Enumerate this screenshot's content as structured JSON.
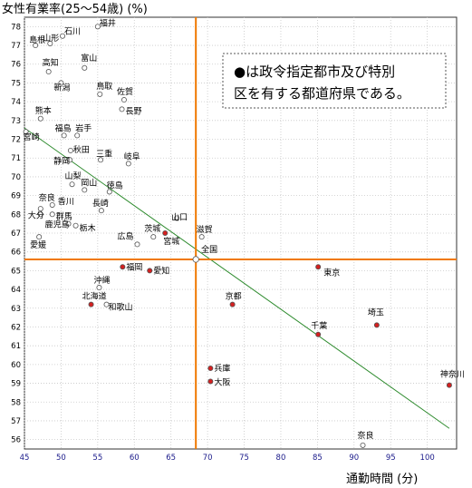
{
  "chart_data": {
    "type": "scatter",
    "title": "女性有業率(25～54歳) (%)",
    "xlabel": "通勤時間 (分)",
    "ylabel": "女性有業率(25～54歳) (%)",
    "xlim": [
      45,
      104
    ],
    "ylim": [
      55.5,
      78.5
    ],
    "x_ticks": [
      45,
      50,
      55,
      60,
      65,
      70,
      75,
      80,
      85,
      90,
      95,
      100
    ],
    "y_ticks": [
      56,
      57,
      58,
      59,
      60,
      61,
      62,
      63,
      64,
      65,
      66,
      67,
      68,
      69,
      70,
      71,
      72,
      73,
      74,
      75,
      76,
      77,
      78
    ],
    "reference_lines": {
      "x": 68.4,
      "y": 65.6,
      "color": "#f07800",
      "label": "全国"
    },
    "trendline": {
      "from": [
        45,
        72.6
      ],
      "to": [
        103,
        56.6
      ],
      "color": "#2e8b2e"
    },
    "marker_colors": {
      "designated": "#d42020",
      "other": "#ffffff",
      "outline": "#555555",
      "national": "#ffffff"
    },
    "legend_note": {
      "marker": "●",
      "lines": [
        "は政令指定都市及び特別",
        "区を有する都道府県である。"
      ]
    },
    "points": [
      {
        "label": "福井",
        "x": 55.0,
        "y": 78.0,
        "designated": false
      },
      {
        "label": "石川",
        "x": 50.2,
        "y": 77.5,
        "designated": false
      },
      {
        "label": "山形",
        "x": 48.5,
        "y": 77.1,
        "designated": false
      },
      {
        "label": "島根",
        "x": 46.5,
        "y": 77.0,
        "designated": false
      },
      {
        "label": "富山",
        "x": 53.2,
        "y": 75.8,
        "designated": false
      },
      {
        "label": "高知",
        "x": 48.3,
        "y": 75.6,
        "designated": false
      },
      {
        "label": "新潟",
        "x": 50.0,
        "y": 75.0,
        "designated": false
      },
      {
        "label": "鳥取",
        "x": 55.3,
        "y": 74.4,
        "designated": false
      },
      {
        "label": "佐賀",
        "x": 58.6,
        "y": 74.1,
        "designated": false
      },
      {
        "label": "長野",
        "x": 58.3,
        "y": 73.6,
        "designated": false
      },
      {
        "label": "熊本",
        "x": 47.2,
        "y": 73.1,
        "designated": false
      },
      {
        "label": "福島",
        "x": 50.4,
        "y": 72.2,
        "designated": false
      },
      {
        "label": "岩手",
        "x": 52.2,
        "y": 72.2,
        "designated": false
      },
      {
        "label": "宮崎",
        "x": 45.2,
        "y": 72.4,
        "designated": false
      },
      {
        "label": "秋田",
        "x": 51.3,
        "y": 71.4,
        "designated": false
      },
      {
        "label": "三重",
        "x": 55.4,
        "y": 70.9,
        "designated": false
      },
      {
        "label": "静岡",
        "x": 51.2,
        "y": 70.9,
        "designated": false
      },
      {
        "label": "岐阜",
        "x": 59.2,
        "y": 70.7,
        "designated": false
      },
      {
        "label": "山梨",
        "x": 51.5,
        "y": 69.6,
        "designated": false
      },
      {
        "label": "岡山",
        "x": 53.2,
        "y": 69.3,
        "designated": false
      },
      {
        "label": "徳島",
        "x": 56.6,
        "y": 69.2,
        "designated": false
      },
      {
        "label": "長崎",
        "x": 55.5,
        "y": 68.2,
        "designated": false
      },
      {
        "label": "香川",
        "x": 48.8,
        "y": 68.5,
        "designated": false
      },
      {
        "label": "奈良",
        "x": 47.2,
        "y": 68.3,
        "designated": false
      },
      {
        "label": "大分",
        "x": 47.2,
        "y": 68.0,
        "designated": false
      },
      {
        "label": "群馬",
        "x": 48.8,
        "y": 68.0,
        "designated": false
      },
      {
        "label": "鹿児島",
        "x": 51.0,
        "y": 67.5,
        "designated": false
      },
      {
        "label": "栃木",
        "x": 52.0,
        "y": 67.4,
        "designated": false
      },
      {
        "label": "山口",
        "x": 65.8,
        "y": 67.8,
        "designated": false
      },
      {
        "label": "茨城",
        "x": 62.6,
        "y": 66.8,
        "designated": false
      },
      {
        "label": "滋賀",
        "x": 69.2,
        "y": 66.8,
        "designated": false
      },
      {
        "label": "広島",
        "x": 60.4,
        "y": 66.4,
        "designated": false
      },
      {
        "label": "宮城",
        "x": 64.2,
        "y": 67.0,
        "designated": true
      },
      {
        "label": "愛媛",
        "x": 47.0,
        "y": 66.8,
        "designated": false
      },
      {
        "label": "全国",
        "x": 68.4,
        "y": 65.6,
        "designated": false,
        "national": true
      },
      {
        "label": "福岡",
        "x": 58.4,
        "y": 65.2,
        "designated": true
      },
      {
        "label": "愛知",
        "x": 62.1,
        "y": 65.0,
        "designated": true
      },
      {
        "label": "沖縄",
        "x": 55.2,
        "y": 64.1,
        "designated": false
      },
      {
        "label": "北海道",
        "x": 54.1,
        "y": 63.2,
        "designated": true
      },
      {
        "label": "和歌山",
        "x": 56.2,
        "y": 63.2,
        "designated": false
      },
      {
        "label": "京都",
        "x": 73.4,
        "y": 63.2,
        "designated": true
      },
      {
        "label": "東京",
        "x": 85.1,
        "y": 65.2,
        "designated": true
      },
      {
        "label": "埼玉",
        "x": 93.1,
        "y": 62.1,
        "designated": true
      },
      {
        "label": "千葉",
        "x": 85.1,
        "y": 61.6,
        "designated": true
      },
      {
        "label": "兵庫",
        "x": 70.4,
        "y": 59.8,
        "designated": true
      },
      {
        "label": "大阪",
        "x": 70.4,
        "y": 59.1,
        "designated": true
      },
      {
        "label": "神奈川",
        "x": 103.0,
        "y": 58.9,
        "designated": true
      },
      {
        "label": "奈良",
        "x": 91.2,
        "y": 55.7,
        "designated": false
      }
    ]
  }
}
